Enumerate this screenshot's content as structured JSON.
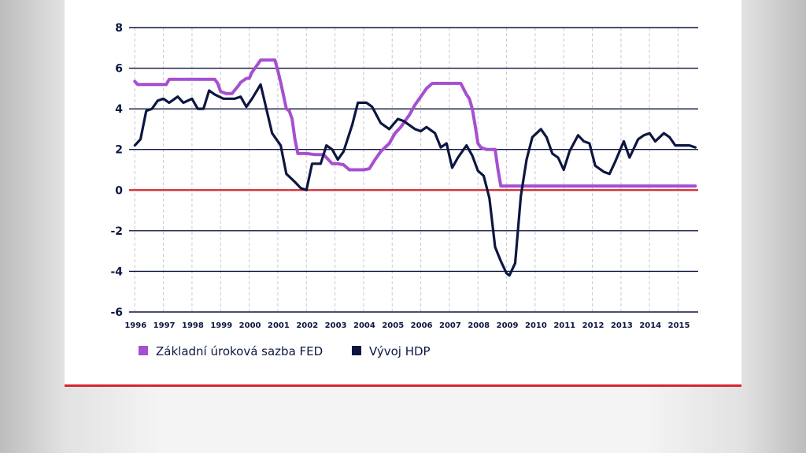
{
  "chart_data": {
    "type": "line",
    "title": "",
    "xlabel": "",
    "ylabel": "",
    "ylim": [
      -6,
      8
    ],
    "xlim": [
      1995.8,
      2015.7
    ],
    "yticks": [
      "8",
      "6",
      "4",
      "2",
      "0",
      "-2",
      "-4",
      "-6"
    ],
    "xticks": [
      "1996",
      "1997",
      "1998",
      "1999",
      "2000",
      "2001",
      "2002",
      "2003",
      "2004",
      "2005",
      "2006",
      "2007",
      "2008",
      "2009",
      "2010",
      "2011",
      "2012",
      "2013",
      "2014",
      "2015"
    ],
    "grid": "horizontal solid, vertical dashed",
    "zero_line_color": "#d6262b",
    "legend_position": "bottom-left",
    "series": [
      {
        "name": "Základní úroková sazba FED",
        "color": "#a64fd0",
        "x": [
          1996.0,
          1996.1,
          1996.4,
          1996.7,
          1996.9,
          1997.1,
          1997.2,
          1997.5,
          1997.8,
          1998.0,
          1998.2,
          1998.5,
          1998.7,
          1998.8,
          1998.9,
          1999.0,
          1999.2,
          1999.4,
          1999.6,
          1999.7,
          1999.9,
          2000.0,
          2000.1,
          2000.2,
          2000.4,
          2000.6,
          2000.8,
          2000.9,
          2001.0,
          2001.1,
          2001.3,
          2001.4,
          2001.5,
          2001.6,
          2001.7,
          2002.0,
          2002.3,
          2002.6,
          2002.7,
          2002.9,
          2003.1,
          2003.3,
          2003.5,
          2003.7,
          2004.0,
          2004.2,
          2004.4,
          2004.6,
          2004.9,
          2005.1,
          2005.3,
          2005.5,
          2005.6,
          2005.8,
          2006.0,
          2006.2,
          2006.4,
          2006.6,
          2006.8,
          2007.0,
          2007.2,
          2007.4,
          2007.6,
          2007.7,
          2007.8,
          2007.9,
          2008.0,
          2008.1,
          2008.3,
          2008.6,
          2008.7,
          2008.8,
          2009.0,
          2010.0,
          2011.0,
          2012.0,
          2013.0,
          2014.0,
          2015.0,
          2015.6
        ],
        "values": [
          5.35,
          5.2,
          5.2,
          5.2,
          5.2,
          5.2,
          5.45,
          5.45,
          5.45,
          5.45,
          5.45,
          5.45,
          5.45,
          5.45,
          5.25,
          4.85,
          4.75,
          4.75,
          5.1,
          5.3,
          5.5,
          5.5,
          5.8,
          6.0,
          6.4,
          6.4,
          6.4,
          6.4,
          5.9,
          5.3,
          4.0,
          3.9,
          3.5,
          2.5,
          1.8,
          1.8,
          1.75,
          1.75,
          1.6,
          1.3,
          1.3,
          1.25,
          1.0,
          1.0,
          1.0,
          1.05,
          1.5,
          1.9,
          2.3,
          2.8,
          3.1,
          3.5,
          3.7,
          4.2,
          4.6,
          5.0,
          5.25,
          5.25,
          5.25,
          5.25,
          5.25,
          5.25,
          4.7,
          4.5,
          4.0,
          3.2,
          2.3,
          2.1,
          2.0,
          2.0,
          1.0,
          0.2,
          0.2,
          0.2,
          0.2,
          0.2,
          0.2,
          0.2,
          0.2,
          0.2
        ]
      },
      {
        "name": "Vývoj HDP",
        "color": "#0d1640",
        "x": [
          1996.0,
          1996.2,
          1996.4,
          1996.6,
          1996.8,
          1997.0,
          1997.2,
          1997.5,
          1997.7,
          1998.0,
          1998.2,
          1998.4,
          1998.6,
          1998.8,
          1999.1,
          1999.3,
          1999.5,
          1999.7,
          1999.9,
          2000.1,
          2000.4,
          2000.6,
          2000.8,
          2001.1,
          2001.3,
          2001.6,
          2001.8,
          2002.0,
          2002.2,
          2002.5,
          2002.7,
          2002.9,
          2003.1,
          2003.3,
          2003.6,
          2003.8,
          2004.1,
          2004.3,
          2004.6,
          2004.9,
          2005.2,
          2005.4,
          2005.6,
          2005.8,
          2006.0,
          2006.2,
          2006.5,
          2006.7,
          2006.9,
          2007.1,
          2007.3,
          2007.6,
          2007.8,
          2008.0,
          2008.2,
          2008.4,
          2008.6,
          2008.8,
          2009.0,
          2009.1,
          2009.3,
          2009.5,
          2009.7,
          2009.9,
          2010.2,
          2010.4,
          2010.6,
          2010.8,
          2011.0,
          2011.2,
          2011.5,
          2011.7,
          2011.9,
          2012.1,
          2012.4,
          2012.6,
          2012.8,
          2013.1,
          2013.3,
          2013.6,
          2013.8,
          2014.0,
          2014.2,
          2014.5,
          2014.7,
          2014.9,
          2015.1,
          2015.4,
          2015.6
        ],
        "values": [
          2.2,
          2.5,
          3.9,
          4.0,
          4.4,
          4.5,
          4.3,
          4.6,
          4.3,
          4.5,
          4.0,
          4.0,
          4.9,
          4.7,
          4.5,
          4.5,
          4.5,
          4.6,
          4.1,
          4.5,
          5.2,
          4.0,
          2.8,
          2.2,
          0.8,
          0.4,
          0.1,
          0.0,
          1.3,
          1.3,
          2.2,
          2.0,
          1.5,
          1.9,
          3.2,
          4.3,
          4.3,
          4.1,
          3.3,
          3.0,
          3.5,
          3.4,
          3.2,
          3.0,
          2.9,
          3.1,
          2.8,
          2.1,
          2.3,
          1.1,
          1.6,
          2.2,
          1.7,
          0.95,
          0.7,
          -0.4,
          -2.8,
          -3.5,
          -4.1,
          -4.2,
          -3.6,
          -0.3,
          1.5,
          2.6,
          3.0,
          2.6,
          1.8,
          1.6,
          1.0,
          1.9,
          2.7,
          2.4,
          2.3,
          1.2,
          0.9,
          0.8,
          1.4,
          2.4,
          1.6,
          2.5,
          2.7,
          2.8,
          2.4,
          2.8,
          2.6,
          2.2,
          2.2,
          2.2,
          2.1
        ]
      }
    ]
  }
}
